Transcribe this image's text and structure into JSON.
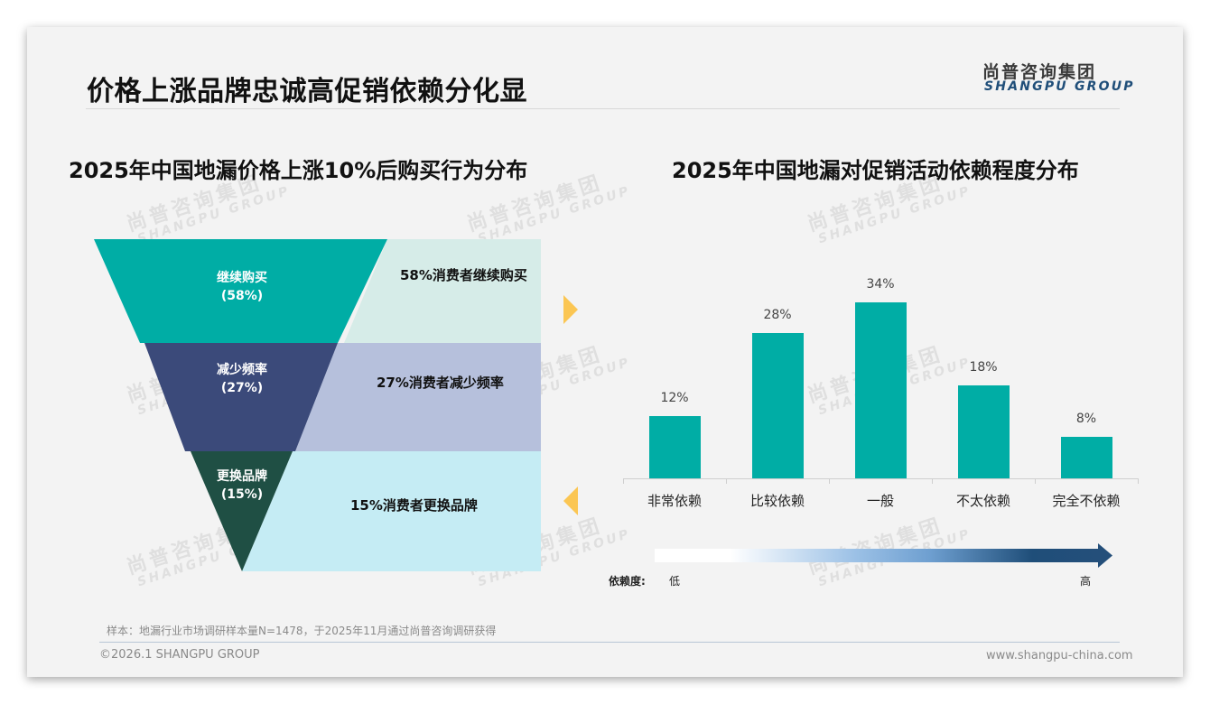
{
  "header": {
    "title": "价格上涨品牌忠诚高促销依赖分化显",
    "logo_cn": "尚普咨询集团",
    "logo_en": "SHANGPU GROUP"
  },
  "watermark": {
    "cn": "尚普咨询集团",
    "en": "SHANGPU GROUP"
  },
  "left_section": {
    "title": "2025年中国地漏价格上涨10%后购买行为分布"
  },
  "right_section": {
    "title": "2025年中国地漏对促销活动依赖程度分布"
  },
  "colors": {
    "funnel_1": "#00ada5",
    "funnel_2": "#3b4a7a",
    "funnel_3": "#1f4f44",
    "panel_1": "#d6ece8",
    "panel_2": "#b6c0dc",
    "panel_3": "#c5ecf4",
    "bar": "#00ada5",
    "arrow_accent": "#fbc653",
    "gradient_dark": "#1f4e79"
  },
  "chart_data": [
    {
      "type": "funnel",
      "title": "2025年中国地漏价格上涨10%后购买行为分布",
      "categories": [
        "继续购买",
        "减少频率",
        "更换品牌"
      ],
      "values": [
        58,
        27,
        15
      ],
      "unit": "%",
      "segment_labels": [
        "继续购买",
        "(58%)",
        "减少频率",
        "(27%)",
        "更换品牌",
        "(15%)"
      ],
      "annotations": [
        "58%消费者继续购买",
        "27%消费者减少频率",
        "15%消费者更换品牌"
      ]
    },
    {
      "type": "bar",
      "title": "2025年中国地漏对促销活动依赖程度分布",
      "categories": [
        "非常依赖",
        "比较依赖",
        "一般",
        "不太依赖",
        "完全不依赖"
      ],
      "values": [
        12,
        28,
        34,
        18,
        8
      ],
      "value_labels": [
        "12%",
        "28%",
        "34%",
        "18%",
        "8%"
      ],
      "unit": "%",
      "xlabel": "",
      "ylabel": "",
      "grid": false,
      "ylim": [
        0,
        35
      ],
      "legend": {
        "label": "依赖度:",
        "low": "低",
        "high": "高"
      }
    }
  ],
  "funnel": {
    "segments": [
      {
        "name": "继续购买",
        "pct": "(58%)",
        "annotation": "58%消费者继续购买"
      },
      {
        "name": "减少频率",
        "pct": "(27%)",
        "annotation": "27%消费者减少频率"
      },
      {
        "name": "更换品牌",
        "pct": "(15%)",
        "annotation": "15%消费者更换品牌"
      }
    ]
  },
  "bars": {
    "items": [
      {
        "label": "非常依赖",
        "value": 12,
        "display": "12%"
      },
      {
        "label": "比较依赖",
        "value": 28,
        "display": "28%"
      },
      {
        "label": "一般",
        "value": 34,
        "display": "34%"
      },
      {
        "label": "不太依赖",
        "value": 18,
        "display": "18%"
      },
      {
        "label": "完全不依赖",
        "value": 8,
        "display": "8%"
      }
    ],
    "legend": {
      "label": "依赖度:",
      "low": "低",
      "high": "高"
    }
  },
  "footer": {
    "note": "样本：地漏行业市场调研样本量N=1478，于2025年11月通过尚普咨询调研获得",
    "copyright": "©2026.1 SHANGPU GROUP",
    "website": "www.shangpu-china.com"
  }
}
